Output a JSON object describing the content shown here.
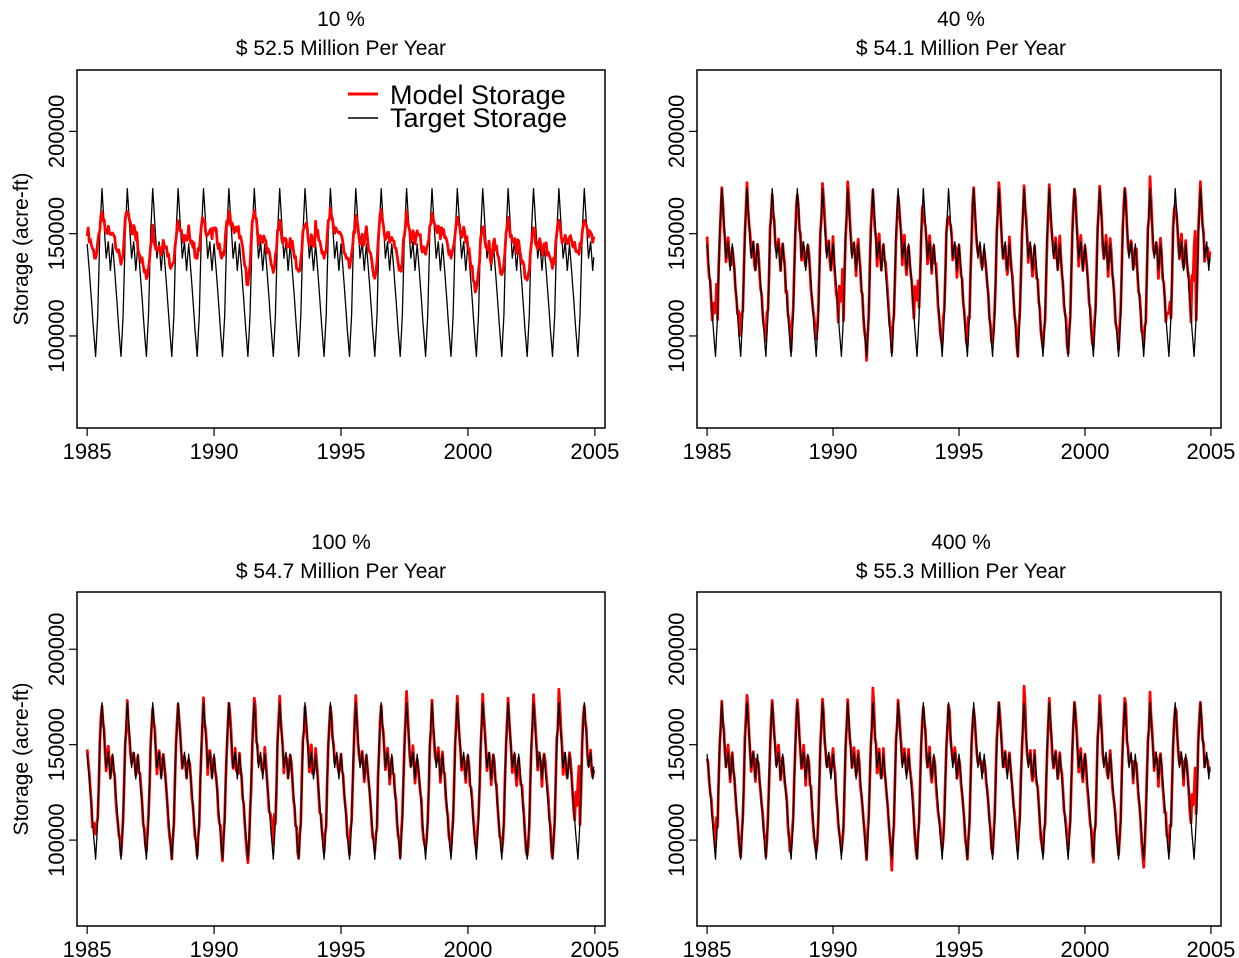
{
  "chart_data": [
    {
      "type": "line",
      "title": "10 %",
      "subtitle": "$ 52.5 Million Per Year",
      "xlabel": "",
      "ylabel": "Storage (acre-ft)",
      "xlim": [
        1984.6,
        2005.4
      ],
      "ylim": [
        55000,
        230000
      ],
      "x_ticks": [
        1985,
        1990,
        1995,
        2000,
        2005
      ],
      "y_ticks": [
        100000,
        150000,
        200000
      ],
      "legend": {
        "placement": "top-right",
        "entries": [
          "Model Storage",
          "Target Storage"
        ]
      },
      "series": [
        {
          "name": "Model Storage",
          "color": "#ff0000",
          "description_values": {
            "start_year": 1985,
            "end_year": 2005,
            "points_per_year": 12,
            "peak_values": [
              161000,
              164000,
              155000,
              159000,
              160000,
              163000,
              167000,
              158000,
              158000,
              163000,
              159000,
              166000,
              162000,
              161000,
              159000,
              158000,
              159000,
              157000,
              157000,
              157000
            ],
            "trough_values": [
              138000,
              135000,
              128000,
              133000,
              138000,
              138000,
              125000,
              131000,
              131000,
              138000,
              133000,
              128000,
              131000,
              138000,
              138000,
              121000,
              130000,
              125000,
              133000,
              139000
            ]
          }
        },
        {
          "name": "Target Storage",
          "color": "#000000",
          "description_values": {
            "max": 172000,
            "min": 90000,
            "secondary_peak": 146000
          }
        }
      ]
    },
    {
      "type": "line",
      "title": "40 %",
      "subtitle": "$ 54.1 Million Per Year",
      "xlabel": "",
      "ylabel": "",
      "xlim": [
        1984.6,
        2005.4
      ],
      "ylim": [
        55000,
        230000
      ],
      "x_ticks": [
        1985,
        1990,
        1995,
        2000,
        2005
      ],
      "y_ticks": [
        100000,
        150000,
        200000
      ],
      "series": [
        {
          "name": "Model Storage",
          "color": "#ff0000",
          "description_values": {
            "peak_values": [
              175000,
              172000,
              172000,
              172000,
              172000,
              178000,
              172000,
              170000,
              165000,
              160000,
              172000,
              174000,
              172000,
              172000,
              172000,
              174000,
              174000,
              176000,
              168000,
              172000
            ],
            "trough_values": [
              115000,
              100000,
              98000,
              95000,
              96000,
              120000,
              92000,
              95000,
              120000,
              95000,
              96000,
              93000,
              92000,
              92000,
              94000,
              95000,
              94000,
              92000,
              108000,
              140000
            ]
          }
        },
        {
          "name": "Target Storage",
          "color": "#000000"
        }
      ]
    },
    {
      "type": "line",
      "title": "100 %",
      "subtitle": "$ 54.7 Million Per Year",
      "xlabel": "",
      "ylabel": "Storage (acre-ft)",
      "xlim": [
        1984.6,
        2005.4
      ],
      "ylim": [
        55000,
        230000
      ],
      "x_ticks": [
        1985,
        1990,
        1995,
        2000,
        2005
      ],
      "y_ticks": [
        100000,
        150000,
        200000
      ],
      "series": [
        {
          "name": "Model Storage",
          "color": "#ff0000",
          "description_values": {
            "peak_values": [
              172000,
              172000,
              172000,
              172000,
              172000,
              173000,
              177000,
              172000,
              172000,
              170000,
              172000,
              172000,
              177000,
              172000,
              172000,
              175000,
              175000,
              175000,
              175000,
              172000
            ],
            "trough_values": [
              103000,
              92000,
              93000,
              92000,
              92000,
              91000,
              89000,
              100000,
              92000,
              92000,
              92000,
              92000,
              92000,
              92000,
              92000,
              92000,
              92000,
              88000,
              92000,
              128000
            ]
          }
        },
        {
          "name": "Target Storage",
          "color": "#000000"
        }
      ]
    },
    {
      "type": "line",
      "title": "400 %",
      "subtitle": "$ 55.3 Million Per Year",
      "xlabel": "",
      "ylabel": "",
      "xlim": [
        1984.6,
        2005.4
      ],
      "ylim": [
        55000,
        230000
      ],
      "x_ticks": [
        1985,
        1990,
        1995,
        2000,
        2005
      ],
      "y_ticks": [
        100000,
        150000,
        200000
      ],
      "series": [
        {
          "name": "Model Storage",
          "color": "#ff0000",
          "description_values": {
            "peak_values": [
              172000,
              175000,
              172000,
              172000,
              172000,
              172000,
              177000,
              172000,
              172000,
              172000,
              172000,
              172000,
              183000,
              172000,
              172000,
              176000,
              176000,
              176000,
              172000,
              172000
            ],
            "trough_values": [
              100000,
              93000,
              92000,
              92000,
              92000,
              92000,
              92000,
              88000,
              92000,
              92000,
              92000,
              92000,
              92000,
              92000,
              92000,
              92000,
              92000,
              89000,
              95000,
              128000
            ]
          }
        },
        {
          "name": "Target Storage",
          "color": "#000000"
        }
      ]
    }
  ]
}
